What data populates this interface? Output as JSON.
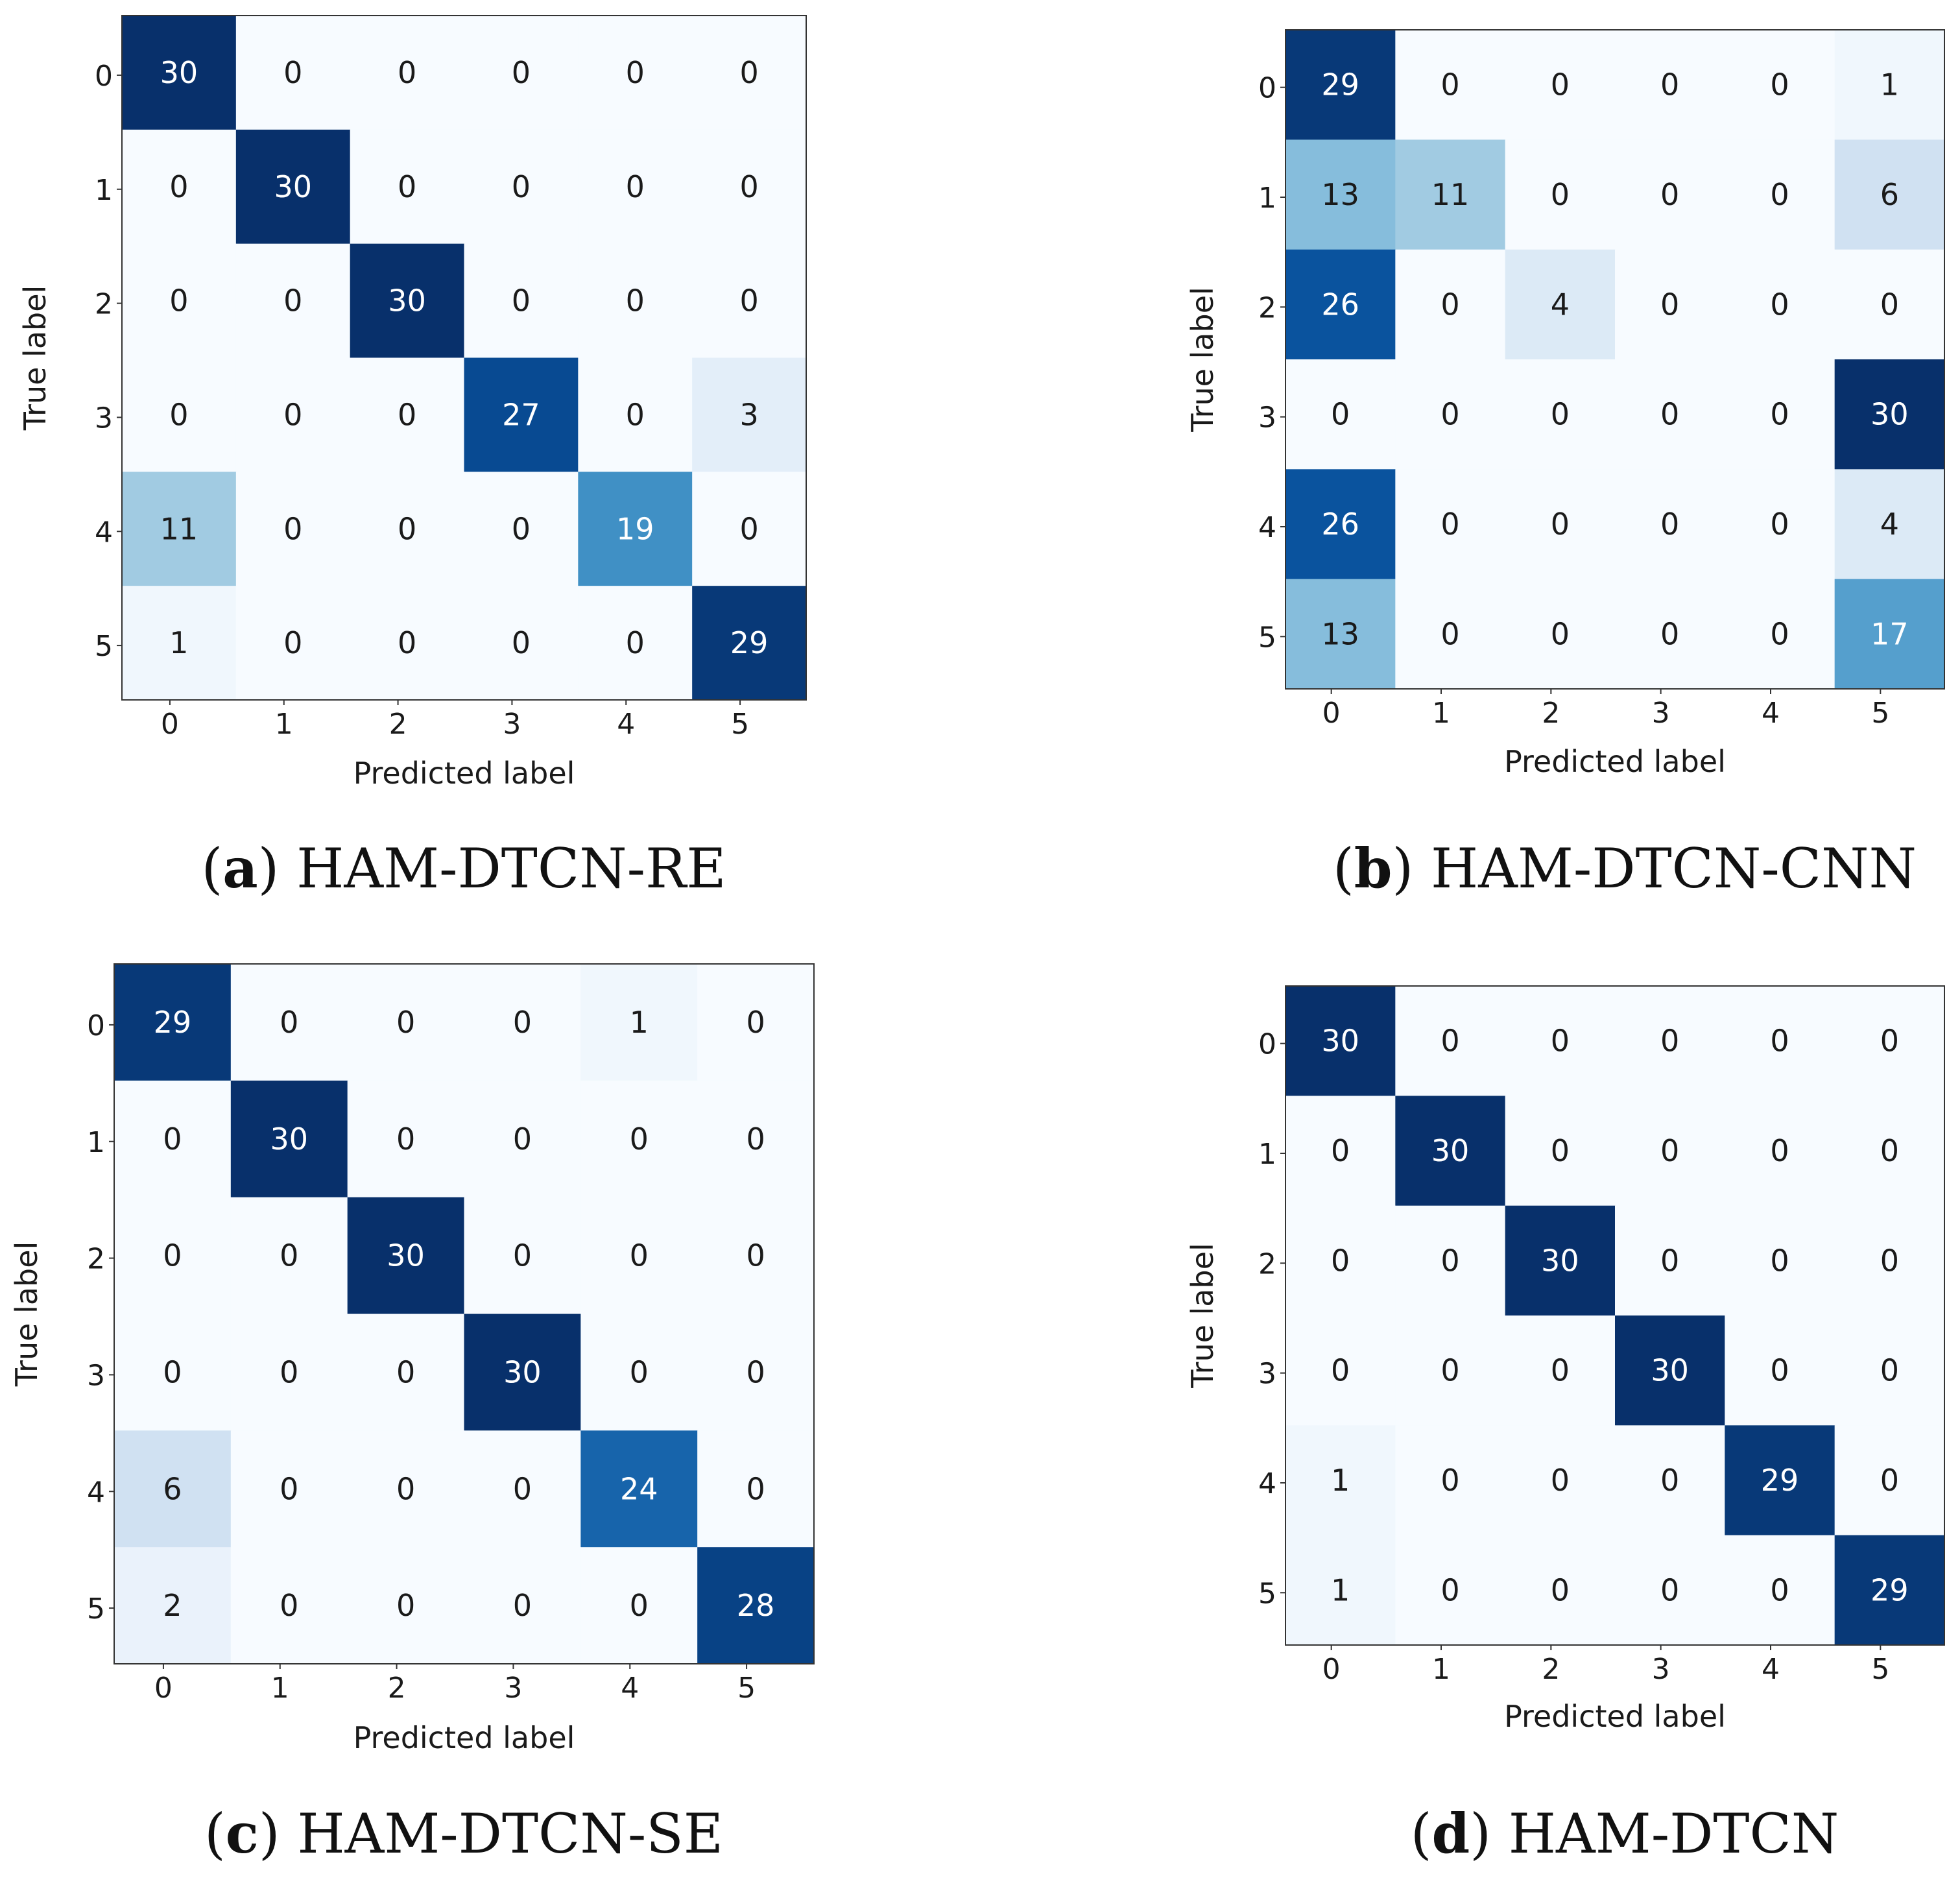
{
  "colors": {
    "cmap_low": "#f7fbff",
    "cmap_mid": "#6baed6",
    "cmap_high": "#08306b",
    "text_dark": "#1a1a1a",
    "text_light": "#ffffff",
    "frame": "#333333"
  },
  "chart_data": [
    {
      "type": "heatmap",
      "caption_letter": "a",
      "title": "HAM-DTCN-RE",
      "xlabel": "Predicted label",
      "ylabel": "True label",
      "x_ticks": [
        "0",
        "1",
        "2",
        "3",
        "4",
        "5"
      ],
      "y_ticks": [
        "0",
        "1",
        "2",
        "3",
        "4",
        "5"
      ],
      "vmax": 30,
      "matrix": [
        [
          30,
          0,
          0,
          0,
          0,
          0
        ],
        [
          0,
          30,
          0,
          0,
          0,
          0
        ],
        [
          0,
          0,
          30,
          0,
          0,
          0
        ],
        [
          0,
          0,
          0,
          27,
          0,
          3
        ],
        [
          11,
          0,
          0,
          0,
          19,
          0
        ],
        [
          1,
          0,
          0,
          0,
          0,
          29
        ]
      ]
    },
    {
      "type": "heatmap",
      "caption_letter": "b",
      "title": "HAM-DTCN-CNN",
      "xlabel": "Predicted label",
      "ylabel": "True label",
      "x_ticks": [
        "0",
        "1",
        "2",
        "3",
        "4",
        "5"
      ],
      "y_ticks": [
        "0",
        "1",
        "2",
        "3",
        "4",
        "5"
      ],
      "vmax": 30,
      "matrix": [
        [
          29,
          0,
          0,
          0,
          0,
          1
        ],
        [
          13,
          11,
          0,
          0,
          0,
          6
        ],
        [
          26,
          0,
          4,
          0,
          0,
          0
        ],
        [
          0,
          0,
          0,
          0,
          0,
          30
        ],
        [
          26,
          0,
          0,
          0,
          0,
          4
        ],
        [
          13,
          0,
          0,
          0,
          0,
          17
        ]
      ]
    },
    {
      "type": "heatmap",
      "caption_letter": "c",
      "title": "HAM-DTCN-SE",
      "xlabel": "Predicted label",
      "ylabel": "True label",
      "x_ticks": [
        "0",
        "1",
        "2",
        "3",
        "4",
        "5"
      ],
      "y_ticks": [
        "0",
        "1",
        "2",
        "3",
        "4",
        "5"
      ],
      "vmax": 30,
      "matrix": [
        [
          29,
          0,
          0,
          0,
          1,
          0
        ],
        [
          0,
          30,
          0,
          0,
          0,
          0
        ],
        [
          0,
          0,
          30,
          0,
          0,
          0
        ],
        [
          0,
          0,
          0,
          30,
          0,
          0
        ],
        [
          6,
          0,
          0,
          0,
          24,
          0
        ],
        [
          2,
          0,
          0,
          0,
          0,
          28
        ]
      ]
    },
    {
      "type": "heatmap",
      "caption_letter": "d",
      "title": "HAM-DTCN",
      "xlabel": "Predicted label",
      "ylabel": "True label",
      "x_ticks": [
        "0",
        "1",
        "2",
        "3",
        "4",
        "5"
      ],
      "y_ticks": [
        "0",
        "1",
        "2",
        "3",
        "4",
        "5"
      ],
      "vmax": 30,
      "matrix": [
        [
          30,
          0,
          0,
          0,
          0,
          0
        ],
        [
          0,
          30,
          0,
          0,
          0,
          0
        ],
        [
          0,
          0,
          30,
          0,
          0,
          0
        ],
        [
          0,
          0,
          0,
          30,
          0,
          0
        ],
        [
          1,
          0,
          0,
          0,
          29,
          0
        ],
        [
          1,
          0,
          0,
          0,
          0,
          29
        ]
      ]
    }
  ]
}
